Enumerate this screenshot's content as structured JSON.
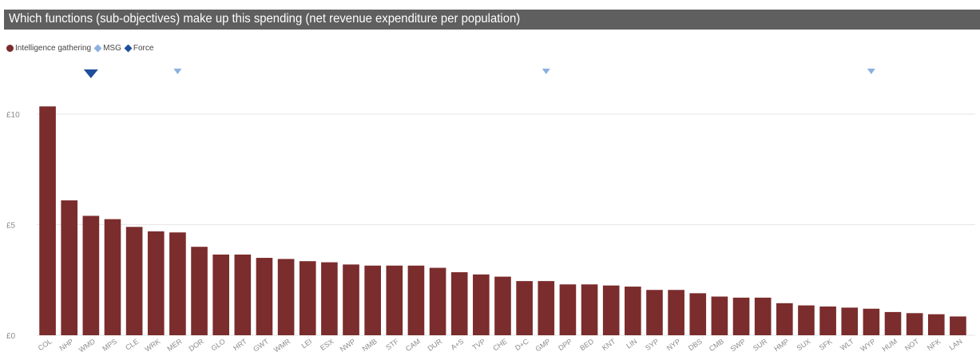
{
  "title": "Which functions (sub-objectives) make up this spending (net revenue expenditure per population)",
  "legend": [
    {
      "label": "Intelligence gathering",
      "shape": "circle",
      "color": "#7b2c2c"
    },
    {
      "label": "MSG",
      "shape": "diamond",
      "color": "#8cb0e0"
    },
    {
      "label": "Force",
      "shape": "diamond",
      "color": "#1f4e9c"
    }
  ],
  "colors": {
    "bar": "#7b2c2c",
    "msg": "#8cb0e0",
    "force": "#1f4e9c",
    "grid": "#e6e6e6",
    "axis_text": "#8a8a8a"
  },
  "chart_data": {
    "type": "bar",
    "title": "Which functions (sub-objectives) make up this spending (net revenue expenditure per population)",
    "xlabel": "",
    "ylabel": "",
    "ylim": [
      0,
      10
    ],
    "yticks": [
      {
        "value": 0,
        "label": "£0"
      },
      {
        "value": 5,
        "label": "£5"
      },
      {
        "value": 10,
        "label": "£10"
      }
    ],
    "grid": true,
    "legend_position": "top-left",
    "categories": [
      "COL",
      "NHP",
      "WMD",
      "MPS",
      "CLE",
      "WRK",
      "MER",
      "DOR",
      "GLO",
      "HRT",
      "GWT",
      "WMR",
      "LEI",
      "ESX",
      "NWP",
      "NMB",
      "STF",
      "CAM",
      "DUR",
      "A+S",
      "TVP",
      "CHE",
      "D+C",
      "GMP",
      "DPP",
      "BED",
      "KNT",
      "LIN",
      "SYP",
      "NYP",
      "DBS",
      "CMB",
      "SWP",
      "SUR",
      "HMP",
      "SUX",
      "SFK",
      "WLT",
      "WYP",
      "HUM",
      "NOT",
      "NFK",
      "LAN"
    ],
    "series": [
      {
        "name": "Intelligence gathering",
        "values": [
          10.35,
          6.1,
          5.4,
          5.25,
          4.9,
          4.7,
          4.65,
          4.0,
          3.65,
          3.65,
          3.5,
          3.45,
          3.35,
          3.3,
          3.2,
          3.15,
          3.15,
          3.15,
          3.05,
          2.85,
          2.75,
          2.65,
          2.45,
          2.45,
          2.3,
          2.3,
          2.25,
          2.2,
          2.05,
          2.05,
          1.9,
          1.75,
          1.7,
          1.7,
          1.45,
          1.35,
          1.3,
          1.25,
          1.2,
          1.05,
          1.0,
          0.95,
          0.85
        ]
      }
    ],
    "markers": [
      {
        "series": "Force",
        "category": "WMD",
        "size": "large"
      },
      {
        "series": "MSG",
        "category": "MER",
        "size": "small"
      },
      {
        "series": "MSG",
        "category": "GMP",
        "size": "small"
      },
      {
        "series": "MSG",
        "category": "WYP",
        "size": "small"
      }
    ]
  }
}
